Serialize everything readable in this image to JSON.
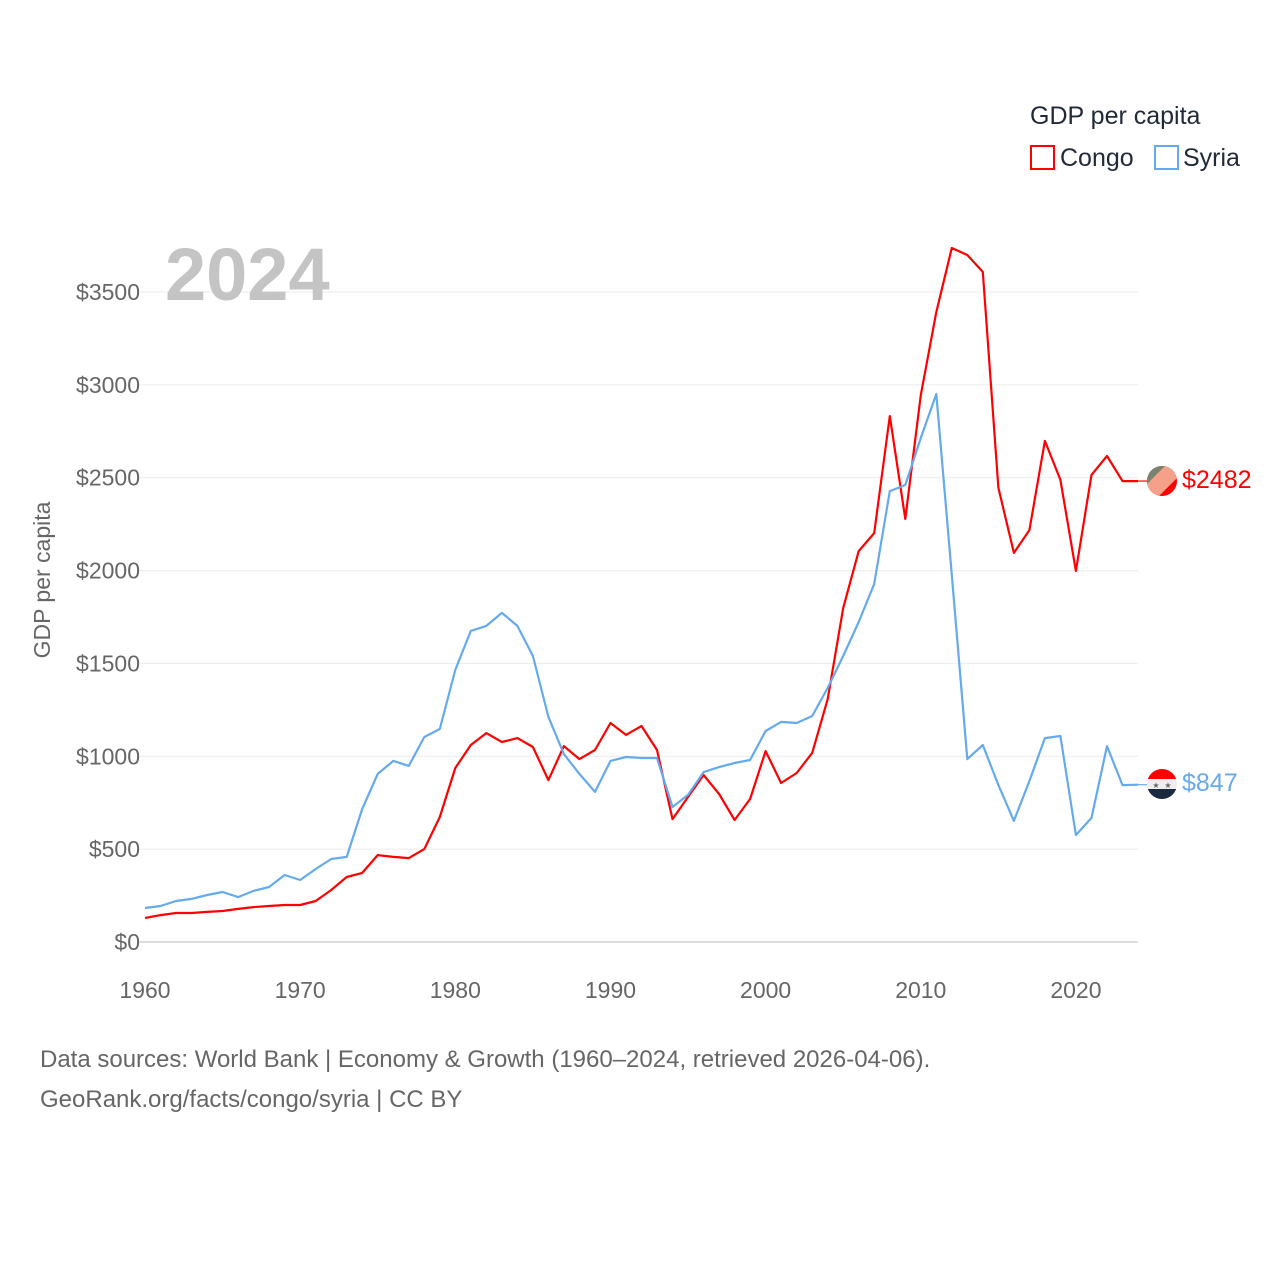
{
  "chart_data": {
    "type": "line",
    "title": "GDP per capita",
    "year_label": "2024",
    "xlabel": "",
    "ylabel": "GDP per capita",
    "xlim": [
      1960,
      2024
    ],
    "ylim": [
      0,
      3500
    ],
    "x_ticks": [
      1960,
      1970,
      1980,
      1990,
      2000,
      2010,
      2020
    ],
    "y_ticks": [
      0,
      500,
      1000,
      1500,
      2000,
      2500,
      3000,
      3500
    ],
    "y_tick_labels": [
      "$0",
      "$500",
      "$1000",
      "$1500",
      "$2000",
      "$2500",
      "$3000",
      "$3500"
    ],
    "grid": true,
    "legend_position": "top-right",
    "x": [
      1960,
      1961,
      1962,
      1963,
      1964,
      1965,
      1966,
      1967,
      1968,
      1969,
      1970,
      1971,
      1972,
      1973,
      1974,
      1975,
      1976,
      1977,
      1978,
      1979,
      1980,
      1981,
      1982,
      1983,
      1984,
      1985,
      1986,
      1987,
      1988,
      1989,
      1990,
      1991,
      1992,
      1993,
      1994,
      1995,
      1996,
      1997,
      1998,
      1999,
      2000,
      2001,
      2002,
      2003,
      2004,
      2005,
      2006,
      2007,
      2008,
      2009,
      2010,
      2011,
      2012,
      2013,
      2014,
      2015,
      2016,
      2017,
      2018,
      2019,
      2020,
      2021,
      2022,
      2023,
      2024
    ],
    "series": [
      {
        "name": "Congo",
        "color": "#ff0000",
        "end_label": "$2482",
        "values": [
          129,
          145,
          156,
          156,
          162,
          167,
          178,
          188,
          194,
          199,
          199,
          221,
          280,
          350,
          372,
          468,
          458,
          452,
          500,
          673,
          937,
          1061,
          1125,
          1077,
          1098,
          1050,
          872,
          1055,
          985,
          1034,
          1179,
          1115,
          1163,
          1034,
          662,
          781,
          899,
          797,
          657,
          770,
          1028,
          856,
          910,
          1018,
          1308,
          1798,
          2105,
          2202,
          2832,
          2278,
          2945,
          3392,
          3737,
          3699,
          3608,
          2445,
          2095,
          2218,
          2698,
          2488,
          1998,
          2515,
          2617,
          2482,
          2482
        ]
      },
      {
        "name": "Syria",
        "color": "#66aaee",
        "end_label": "$847",
        "values": [
          183,
          194,
          221,
          232,
          253,
          269,
          242,
          275,
          296,
          361,
          334,
          393,
          447,
          458,
          716,
          905,
          975,
          948,
          1104,
          1147,
          1465,
          1675,
          1702,
          1772,
          1702,
          1540,
          1212,
          1012,
          905,
          808,
          975,
          996,
          991,
          991,
          727,
          792,
          915,
          942,
          964,
          980,
          1136,
          1185,
          1179,
          1217,
          1368,
          1540,
          1723,
          1928,
          2428,
          2461,
          2714,
          2951,
          1976,
          985,
          1061,
          845,
          652,
          867,
          1098,
          1109,
          576,
          668,
          1055,
          845,
          847
        ]
      }
    ]
  },
  "footer": {
    "line1": "Data sources: World Bank | Economy & Growth (1960–2024, retrieved 2026-04-06).",
    "line2": "GeoRank.org/facts/congo/syria | CC BY"
  }
}
